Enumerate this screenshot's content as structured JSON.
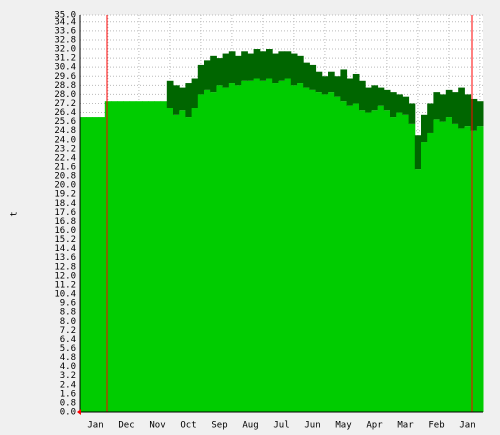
{
  "chart_data": {
    "type": "band-area",
    "y_label": "t",
    "categories": [
      null,
      null,
      "Jan",
      null,
      null,
      null,
      null,
      "Dec",
      null,
      null,
      null,
      null,
      "Nov",
      null,
      null,
      null,
      null,
      "Oct",
      null,
      null,
      null,
      null,
      "Sep",
      null,
      null,
      null,
      null,
      "Aug",
      null,
      null,
      null,
      null,
      "Jul",
      null,
      null,
      null,
      null,
      "Jun",
      null,
      null,
      null,
      null,
      "May",
      null,
      null,
      null,
      null,
      "Apr",
      null,
      null,
      null,
      null,
      "Mar",
      null,
      null,
      null,
      null,
      "Feb",
      null,
      null,
      null,
      null,
      "Jan",
      null,
      null
    ],
    "series": [
      {
        "color": "#00cc00",
        "values": [
          26.0,
          26.0,
          26.0,
          26.0,
          27.4,
          27.4,
          27.4,
          27.4,
          27.4,
          27.4,
          27.4,
          27.4,
          27.4,
          27.4,
          26.8,
          26.2,
          26.6,
          26.0,
          26.8,
          28.0,
          28.4,
          28.2,
          28.8,
          28.6,
          29.0,
          28.8,
          29.2,
          29.2,
          29.4,
          29.2,
          29.4,
          29.0,
          29.2,
          29.4,
          28.8,
          29.0,
          28.6,
          28.4,
          28.2,
          28.0,
          28.2,
          27.8,
          27.4,
          27.0,
          27.2,
          26.6,
          26.4,
          26.6,
          27.0,
          26.6,
          26.0,
          26.4,
          26.2,
          25.4,
          21.4,
          23.8,
          24.6,
          25.8,
          25.6,
          26.0,
          25.4,
          25.0,
          25.2,
          24.8,
          25.2
        ]
      },
      {
        "color": "#006600",
        "values": [
          26.0,
          26.0,
          26.0,
          26.0,
          27.4,
          27.4,
          27.4,
          27.4,
          27.4,
          27.4,
          27.4,
          27.4,
          27.4,
          27.4,
          29.2,
          28.8,
          28.6,
          29.0,
          29.4,
          30.6,
          31.0,
          31.4,
          31.2,
          31.6,
          31.8,
          31.4,
          31.8,
          31.6,
          32.0,
          31.8,
          32.0,
          31.6,
          31.8,
          31.8,
          31.6,
          31.4,
          30.8,
          30.6,
          30.0,
          29.6,
          30.0,
          29.6,
          30.2,
          29.4,
          29.8,
          29.2,
          28.6,
          28.8,
          28.6,
          28.4,
          28.2,
          28.0,
          27.8,
          27.2,
          24.4,
          26.2,
          27.2,
          28.2,
          28.0,
          28.4,
          28.2,
          28.6,
          28.0,
          27.6,
          27.4
        ]
      }
    ],
    "ylim": [
      0,
      35
    ],
    "yticks": [
      {
        "value": 0,
        "label": "0.0"
      },
      0.8,
      1.6,
      2.4,
      3.2,
      {
        "value": 4,
        "label": "4.0"
      },
      4.8,
      5.6,
      6.4,
      7.2,
      {
        "value": 8,
        "label": "8.0"
      },
      8.8,
      9.6,
      10.4,
      11.2,
      {
        "value": 12,
        "label": "12.0"
      },
      12.8,
      13.6,
      14.4,
      15.2,
      {
        "value": 16,
        "label": "16.0"
      },
      16.8,
      17.6,
      18.4,
      19.2,
      {
        "value": 20,
        "label": "20.0"
      },
      20.8,
      21.6,
      22.4,
      23.2,
      {
        "value": 24,
        "label": "24.0"
      },
      24.8,
      25.6,
      26.4,
      27.2,
      {
        "value": 28,
        "label": "28.0"
      },
      28.8,
      29.6,
      30.4,
      31.2,
      {
        "value": 32,
        "label": "32.0"
      },
      32.8,
      33.6,
      34.4,
      {
        "value": 35,
        "label": "35.0"
      }
    ],
    "grid": true
  }
}
